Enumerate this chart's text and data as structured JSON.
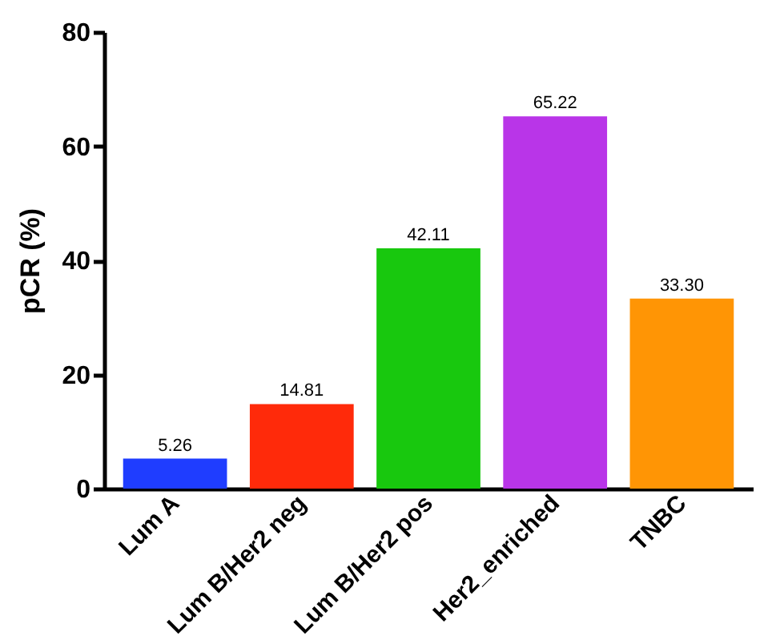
{
  "chart_data": {
    "type": "bar",
    "ylabel": "pCR (%)",
    "categories": [
      "Lum A",
      "Lum B/Her2 neg",
      "Lum B/Her2 pos",
      "Her2_enriched",
      "TNBC"
    ],
    "values": [
      5.26,
      14.81,
      42.11,
      65.22,
      33.3
    ],
    "value_labels": [
      "5.26",
      "14.81",
      "42.11",
      "65.22",
      "33.30"
    ],
    "colors": [
      "#1f3dff",
      "#ff2a0a",
      "#18c80e",
      "#b935e8",
      "#ff9505"
    ],
    "ylim": [
      0,
      80
    ],
    "yticks": [
      0,
      20,
      40,
      60,
      80
    ],
    "grid": false
  }
}
